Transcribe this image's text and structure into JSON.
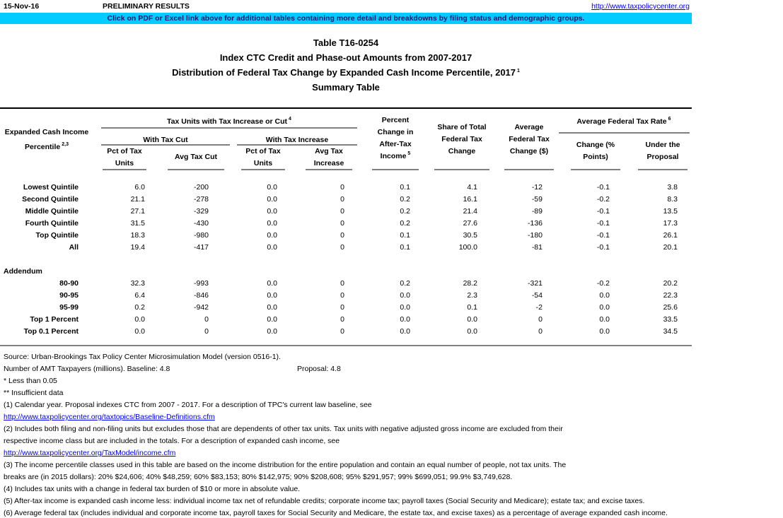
{
  "header": {
    "date": "15-Nov-16",
    "status": "PRELIMINARY RESULTS",
    "link": "http://www.taxpolicycenter.org",
    "banner": "Click on PDF or Excel link above for additional tables containing more detail and breakdowns by filing status and demographic groups."
  },
  "title": {
    "lines": [
      "Table T16-0254",
      "Index CTC Credit and Phase-out Amounts from 2007-2017",
      "Distribution of Federal Tax Change by Expanded Cash Income Percentile, 2017",
      "Summary Table"
    ],
    "superscript": "1"
  },
  "table": {
    "stub": {
      "lines": [
        "Expanded Cash Income",
        "Percentile"
      ],
      "superscript": "2,3"
    },
    "group_tax_units": {
      "text": "Tax Units with Tax Increase or Cut",
      "superscript": "4"
    },
    "subgroups": [
      "With Tax Cut",
      "With Tax Increase"
    ],
    "group_rate": {
      "text": "Average Federal Tax Rate",
      "superscript": "6"
    },
    "columns": [
      {
        "lines": [
          "Pct of Tax",
          "Units"
        ]
      },
      {
        "lines": [
          "Avg Tax Cut"
        ]
      },
      {
        "lines": [
          "Pct of Tax",
          "Units"
        ]
      },
      {
        "lines": [
          "Avg Tax",
          "Increase"
        ]
      },
      {
        "lines": [
          "Percent",
          "Change in",
          "After-Tax",
          "Income"
        ],
        "superscript": "5"
      },
      {
        "lines": [
          "Share of Total",
          "Federal Tax",
          "Change"
        ]
      },
      {
        "lines": [
          "Average",
          "Federal Tax",
          "Change ($)"
        ]
      },
      {
        "lines": [
          "Change (%",
          "Points)"
        ]
      },
      {
        "lines": [
          "Under the",
          "Proposal"
        ]
      }
    ],
    "rows": [
      {
        "label": "Lowest Quintile",
        "values": [
          "6.0",
          "-200",
          "0.0",
          "0",
          "0.1",
          "4.1",
          "-12",
          "-0.1",
          "3.8"
        ]
      },
      {
        "label": "Second Quintile",
        "values": [
          "21.1",
          "-278",
          "0.0",
          "0",
          "0.2",
          "16.1",
          "-59",
          "-0.2",
          "8.3"
        ]
      },
      {
        "label": "Middle Quintile",
        "values": [
          "27.1",
          "-329",
          "0.0",
          "0",
          "0.2",
          "21.4",
          "-89",
          "-0.1",
          "13.5"
        ]
      },
      {
        "label": "Fourth Quintile",
        "values": [
          "31.5",
          "-430",
          "0.0",
          "0",
          "0.2",
          "27.6",
          "-136",
          "-0.1",
          "17.3"
        ]
      },
      {
        "label": "Top Quintile",
        "values": [
          "18.3",
          "-980",
          "0.0",
          "0",
          "0.1",
          "30.5",
          "-180",
          "-0.1",
          "26.1"
        ]
      },
      {
        "label": "All",
        "values": [
          "19.4",
          "-417",
          "0.0",
          "0",
          "0.1",
          "100.0",
          "-81",
          "-0.1",
          "20.1"
        ]
      }
    ],
    "addendum_label": "Addendum",
    "addendum_rows": [
      {
        "label": "80-90",
        "values": [
          "32.3",
          "-993",
          "0.0",
          "0",
          "0.2",
          "28.2",
          "-321",
          "-0.2",
          "20.2"
        ]
      },
      {
        "label": "90-95",
        "values": [
          "6.4",
          "-846",
          "0.0",
          "0",
          "0.0",
          "2.3",
          "-54",
          "0.0",
          "22.3"
        ]
      },
      {
        "label": "95-99",
        "values": [
          "0.2",
          "-942",
          "0.0",
          "0",
          "0.0",
          "0.1",
          "-2",
          "0.0",
          "25.6"
        ]
      },
      {
        "label": "Top 1 Percent",
        "values": [
          "0.0",
          "0",
          "0.0",
          "0",
          "0.0",
          "0.0",
          "0",
          "0.0",
          "33.5"
        ]
      },
      {
        "label": "Top 0.1 Percent",
        "values": [
          "0.0",
          "0",
          "0.0",
          "0",
          "0.0",
          "0.0",
          "0",
          "0.0",
          "34.5"
        ]
      }
    ]
  },
  "notes": [
    {
      "text": "Source: Urban-Brookings Tax Policy Center Microsimulation Model (version 0516-1)."
    },
    {
      "text": "Number of AMT Taxpayers (millions).  Baseline: 4.8",
      "text2": "Proposal: 4.8"
    },
    {
      "text": "* Less than 0.05"
    },
    {
      "text": "** Insufficient data"
    },
    {
      "text": "(1) Calendar year. Proposal indexes CTC from 2007 - 2017. For a description of TPC's current law baseline, see"
    },
    {
      "text": "http://www.taxpolicycenter.org/taxtopics/Baseline-Definitions.cfm",
      "link": true
    },
    {
      "text": "(2) Includes both filing and non-filing units but excludes those that are dependents of other tax units. Tax units with negative adjusted gross income are excluded from their"
    },
    {
      "text": "respective income class but are included in the totals. For a description of expanded cash income, see"
    },
    {
      "text": "http://www.taxpolicycenter.org/TaxModel/income.cfm",
      "link": true
    },
    {
      "text": "(3) The income percentile classes used in this table are based on the income distribution for the entire population and contain an equal number of people, not tax units. The"
    },
    {
      "text": "breaks are (in 2015 dollars): 20% $24,606; 40% $48,259; 60% $83,153; 80% $142,975; 90% $208,608; 95% $291,957; 99% $699,051; 99.9% $3,749,628."
    },
    {
      "text": "(4) Includes tax units with a change in federal tax burden of $10 or more in absolute value."
    },
    {
      "text": "(5) After-tax income is expanded cash income less: individual income tax net of refundable credits; corporate income tax; payroll taxes (Social Security and Medicare); estate tax; and excise taxes."
    },
    {
      "text": "(6) Average federal tax (includes individual and corporate income tax, payroll taxes for Social Security and Medicare, the estate tax, and excise taxes) as a percentage of average expanded cash income."
    }
  ]
}
